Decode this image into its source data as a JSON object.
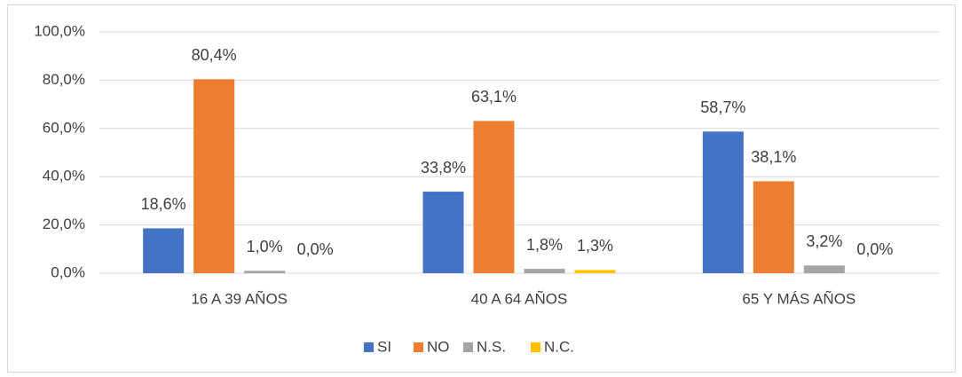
{
  "chart_data": {
    "type": "bar",
    "categories": [
      "16 A 39 AÑOS",
      "40 A 64 AÑOS",
      "65 Y MÁS AÑOS"
    ],
    "series": [
      {
        "name": "SI",
        "color": "#4472c4",
        "values": [
          18.6,
          33.8,
          58.7
        ],
        "value_labels": [
          "18,6%",
          "33,8%",
          "58,7%"
        ]
      },
      {
        "name": "NO",
        "color": "#ed7d31",
        "values": [
          80.4,
          63.1,
          38.1
        ],
        "value_labels": [
          "80,4%",
          "63,1%",
          "38,1%"
        ]
      },
      {
        "name": "N.S.",
        "color": "#a5a5a5",
        "values": [
          1.0,
          1.8,
          3.2
        ],
        "value_labels": [
          "1,0%",
          "1,8%",
          "3,2%"
        ]
      },
      {
        "name": "N.C.",
        "color": "#ffc000",
        "values": [
          0.0,
          1.3,
          0.0
        ],
        "value_labels": [
          "0,0%",
          "1,3%",
          "0,0%"
        ]
      }
    ],
    "ylim": [
      0,
      100
    ],
    "yticks": [
      {
        "value": 0,
        "label": "0,0%"
      },
      {
        "value": 20,
        "label": "20,0%"
      },
      {
        "value": 40,
        "label": "40,0%"
      },
      {
        "value": 60,
        "label": "60,0%"
      },
      {
        "value": 80,
        "label": "80,0%"
      },
      {
        "value": 100,
        "label": "100,0%"
      }
    ],
    "grid": true,
    "legend": "bottom"
  }
}
